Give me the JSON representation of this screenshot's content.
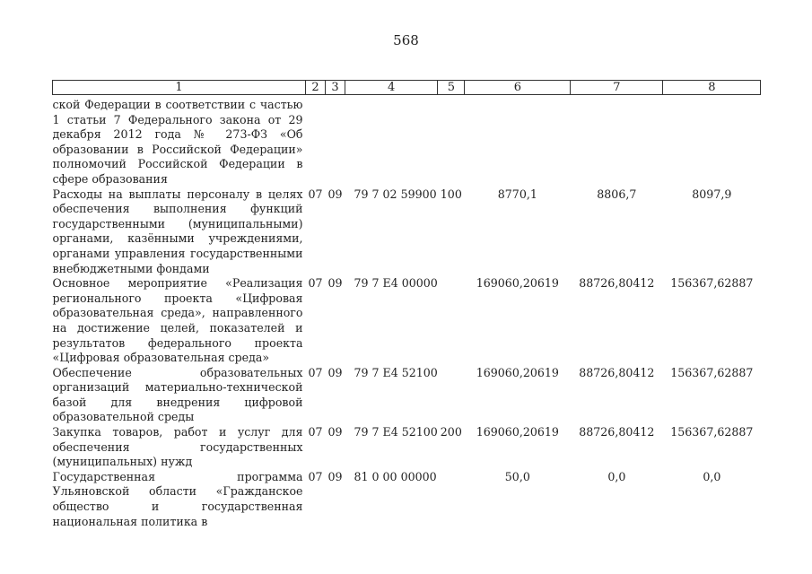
{
  "page_number": "568",
  "table": {
    "headers": [
      "1",
      "2",
      "3",
      "4",
      "5",
      "6",
      "7",
      "8"
    ],
    "rows": [
      {
        "name": "ской Федерации в соответствии с частью 1 статьи 7 Федерального закона от 29 декабря 2012 года № 273-ФЗ «Об образовании в Российской Федерации» полномочий Российской Федерации в сфере образования",
        "c2": "",
        "c3": "",
        "c4": "",
        "c5": "",
        "c6": "",
        "c7": "",
        "c8": ""
      },
      {
        "name": "Расходы на выплаты персоналу в целях обеспечения выполнения функций государственными (муниципальными) органами, казёнными учреждениями, органами управления государственными внебюджетными фондами",
        "c2": "07",
        "c3": "09",
        "c4": "79 7 02 59900",
        "c5": "100",
        "c6": "8770,1",
        "c7": "8806,7",
        "c8": "8097,9"
      },
      {
        "name": "Основное мероприятие «Реализация регионального проекта «Цифровая образовательная среда», направленного на достижение целей, показателей и результатов федерального проекта «Цифровая образовательная среда»",
        "c2": "07",
        "c3": "09",
        "c4": "79 7 E4 00000",
        "c5": "",
        "c6": "169060,20619",
        "c7": "88726,80412",
        "c8": "156367,62887"
      },
      {
        "name": "Обеспечение образовательных организаций материально-технической базой для внедрения цифровой образовательной среды",
        "c2": "07",
        "c3": "09",
        "c4": "79 7 E4 52100",
        "c5": "",
        "c6": "169060,20619",
        "c7": "88726,80412",
        "c8": "156367,62887"
      },
      {
        "name": "Закупка товаров, работ и услуг для обеспечения государственных (муниципальных) нужд",
        "c2": "07",
        "c3": "09",
        "c4": "79 7 E4 52100",
        "c5": "200",
        "c6": "169060,20619",
        "c7": "88726,80412",
        "c8": "156367,62887"
      },
      {
        "name": "Государственная программа Ульяновской области «Гражданское общество и государственная национальная политика в",
        "c2": "07",
        "c3": "09",
        "c4": "81 0 00 00000",
        "c5": "",
        "c6": "50,0",
        "c7": "0,0",
        "c8": "0,0"
      }
    ]
  }
}
